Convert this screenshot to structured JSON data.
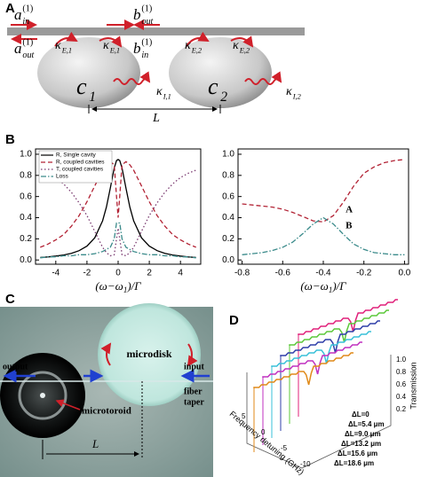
{
  "panel_labels": {
    "a": "A",
    "b": "B",
    "c": "C",
    "d": "D"
  },
  "panel_a": {
    "labels": [
      {
        "base": "a",
        "sub": "in",
        "sup": "(1)"
      },
      {
        "base": "b",
        "sub": "out",
        "sup": "(1)"
      },
      {
        "base": "a",
        "sub": "out",
        "sup": "(1)"
      },
      {
        "base": "κ",
        "sub": "E,1"
      },
      {
        "base": "κ",
        "sub": "E,1"
      },
      {
        "base": "b",
        "sub": "in",
        "sup": "(1)"
      },
      {
        "base": "κ",
        "sub": "E,2"
      },
      {
        "base": "κ",
        "sub": "E,2"
      },
      {
        "base": "c",
        "sub": "1"
      },
      {
        "base": "c",
        "sub": "2"
      },
      {
        "base": "κ",
        "sub": "I,1"
      },
      {
        "base": "κ",
        "sub": "I,2"
      }
    ],
    "distance": "L"
  },
  "chart_data": [
    {
      "type": "line",
      "xlabel": {
        "head": "(ω−ω",
        "sub": "1",
        "tail": ")/Γ"
      },
      "x": [
        -5,
        -4.5,
        -4,
        -3.5,
        -3,
        -2.5,
        -2,
        -1.5,
        -1,
        -0.75,
        -0.5,
        -0.25,
        -0.1,
        0,
        0.1,
        0.25,
        0.5,
        0.75,
        1,
        1.5,
        2,
        2.5,
        3,
        3.5,
        4,
        4.5,
        5
      ],
      "xlim": [
        -5.3,
        5.3
      ],
      "xticks": [
        -4,
        -2,
        0,
        2,
        4
      ],
      "ylim": [
        -0.04,
        1.05
      ],
      "yticks": [
        {
          "value": 0,
          "label": "0.0"
        },
        0.2,
        0.4,
        0.6,
        0.8,
        {
          "value": 1,
          "label": "1.0"
        }
      ],
      "legend": "upper left",
      "series": [
        {
          "name": "R, Single cavity",
          "color": "#000000",
          "dash": "solid",
          "values": [
            0.024,
            0.029,
            0.037,
            0.047,
            0.063,
            0.088,
            0.131,
            0.21,
            0.37,
            0.5,
            0.68,
            0.87,
            0.94,
            0.95,
            0.94,
            0.87,
            0.68,
            0.5,
            0.37,
            0.21,
            0.131,
            0.088,
            0.063,
            0.047,
            0.037,
            0.029,
            0.024
          ]
        },
        {
          "name": "R, coupled cavities",
          "color": "#b22234",
          "dash": "dashed",
          "values": [
            0.12,
            0.15,
            0.19,
            0.24,
            0.32,
            0.42,
            0.55,
            0.7,
            0.85,
            0.9,
            0.93,
            0.9,
            0.6,
            0.4,
            0.6,
            0.9,
            0.93,
            0.9,
            0.85,
            0.7,
            0.55,
            0.42,
            0.32,
            0.24,
            0.19,
            0.15,
            0.12
          ]
        },
        {
          "name": "T, coupled cavities",
          "color": "#7a3a70",
          "dash": "dotted",
          "values": [
            0.85,
            0.82,
            0.78,
            0.72,
            0.64,
            0.54,
            0.42,
            0.27,
            0.12,
            0.07,
            0.04,
            0.05,
            0.2,
            0.3,
            0.2,
            0.05,
            0.04,
            0.07,
            0.12,
            0.27,
            0.42,
            0.54,
            0.64,
            0.72,
            0.78,
            0.82,
            0.85
          ]
        },
        {
          "name": "Loss",
          "color": "#3a8a8a",
          "dash": "dashdot",
          "values": [
            0.02,
            0.03,
            0.03,
            0.04,
            0.04,
            0.05,
            0.05,
            0.06,
            0.08,
            0.1,
            0.12,
            0.2,
            0.35,
            0.35,
            0.35,
            0.2,
            0.12,
            0.1,
            0.08,
            0.06,
            0.05,
            0.05,
            0.04,
            0.04,
            0.03,
            0.03,
            0.02
          ]
        }
      ]
    },
    {
      "type": "line",
      "xlabel": {
        "head": "(ω−ω",
        "sub": "1",
        "tail": ")/Γ"
      },
      "x": [
        -0.8,
        -0.75,
        -0.7,
        -0.65,
        -0.6,
        -0.55,
        -0.5,
        -0.45,
        -0.4,
        -0.35,
        -0.3,
        -0.25,
        -0.2,
        -0.15,
        -0.1,
        -0.05,
        0
      ],
      "xlim": [
        -0.82,
        0.02
      ],
      "xticks": [
        -0.8,
        -0.6,
        -0.4,
        -0.2,
        {
          "value": 0,
          "label": "0.0"
        }
      ],
      "ylim": [
        -0.04,
        1.05
      ],
      "yticks": [
        {
          "value": 0,
          "label": "0.0"
        },
        0.2,
        0.4,
        0.6,
        0.8,
        {
          "value": 1,
          "label": "1.0"
        }
      ],
      "annotations": [
        {
          "text": "A",
          "x": -0.29,
          "y": 0.47
        },
        {
          "text": "B",
          "x": -0.29,
          "y": 0.32
        }
      ],
      "series": [
        {
          "color": "#b22234",
          "dash": "dashed",
          "values": [
            0.53,
            0.52,
            0.51,
            0.5,
            0.48,
            0.45,
            0.41,
            0.37,
            0.36,
            0.42,
            0.55,
            0.7,
            0.82,
            0.88,
            0.92,
            0.94,
            0.95
          ]
        },
        {
          "color": "#3a8a8a",
          "dash": "dashdot",
          "values": [
            0.05,
            0.06,
            0.07,
            0.09,
            0.12,
            0.17,
            0.25,
            0.34,
            0.4,
            0.34,
            0.24,
            0.15,
            0.1,
            0.07,
            0.06,
            0.05,
            0.05
          ]
        }
      ]
    }
  ],
  "panel_c": {
    "microdisk": "microdisk",
    "output": "output",
    "input": "input",
    "fiber_taper": [
      "fiber",
      "taper"
    ],
    "microtoroid": "microtoroid",
    "distance": "L"
  },
  "panel_d": {
    "z_label": "Transmission",
    "zticks": [
      "1.0",
      "0.8",
      "0.6",
      "0.4",
      "0.2"
    ],
    "x_label": "Frequency detuning (GHz)",
    "xticks": [
      "5",
      "0",
      "-5",
      "-10"
    ],
    "traces": [
      {
        "label": "ΔL=0",
        "color": "#e0207a"
      },
      {
        "label": "ΔL=5.4 μm",
        "color": "#5cc83a"
      },
      {
        "label": "ΔL=9.0 μm",
        "color": "#2f3fa8"
      },
      {
        "label": "ΔL=13.2 μm",
        "color": "#38c0d8"
      },
      {
        "label": "ΔL=15.6 μm",
        "color": "#c030c0"
      },
      {
        "label": "ΔL=18.6 μm",
        "color": "#e08a1a"
      }
    ]
  }
}
